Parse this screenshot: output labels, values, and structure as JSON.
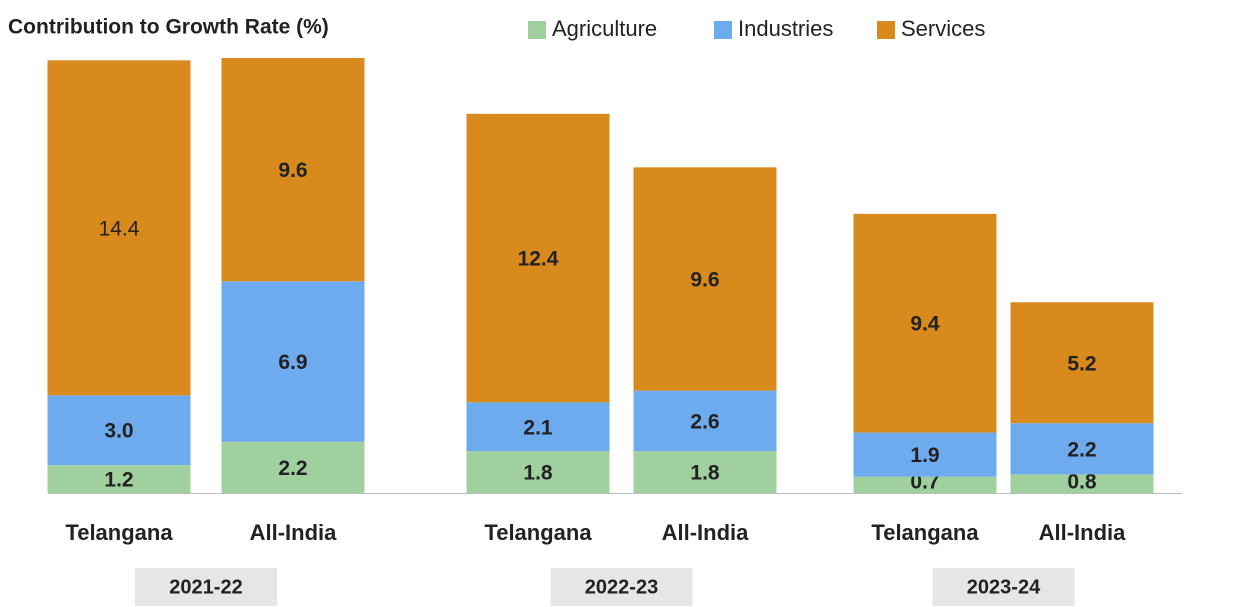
{
  "chart_data": {
    "type": "stacked_bar",
    "title": "Contribution to Growth Rate (%)",
    "categories": [
      "Telangana",
      "All-India",
      "Telangana",
      "All-India",
      "Telangana",
      "All-India"
    ],
    "groups": [
      "2021-22",
      "2022-23",
      "2023-24"
    ],
    "series": [
      {
        "name": "Agriculture",
        "color": "#9fd09d",
        "values": [
          1.2,
          2.2,
          1.8,
          1.8,
          0.7,
          0.8
        ],
        "value_labels": [
          "1.2",
          "2.2",
          "1.8",
          "1.8",
          "0.7",
          "0.8"
        ]
      },
      {
        "name": "Industries",
        "color": "#6eaaee",
        "values": [
          3.0,
          6.9,
          2.1,
          2.6,
          1.9,
          2.2
        ],
        "value_labels": [
          "3.0",
          "6.9",
          "2.1",
          "2.6",
          "1.9",
          "2.2"
        ]
      },
      {
        "name": "Services",
        "color": "#d88b1c",
        "values": [
          14.4,
          9.6,
          12.4,
          9.6,
          9.4,
          5.2
        ],
        "value_labels": [
          "14.4",
          "9.6",
          "12.4",
          "9.6",
          "9.4",
          "5.2"
        ]
      }
    ],
    "legend": "top"
  }
}
